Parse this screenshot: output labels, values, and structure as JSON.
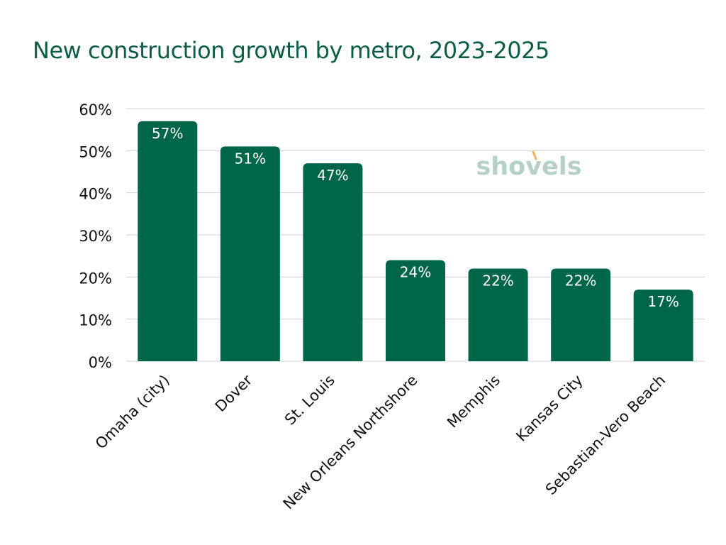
{
  "colors": {
    "bar": "#00664a",
    "title": "#0b5e45",
    "grid": "#d0d0d0",
    "text": "#111111",
    "bar_label": "#ffffff",
    "watermark_text": "#a9c9bd",
    "watermark_accent": "#f1b15a"
  },
  "watermark": {
    "text": "shovels"
  },
  "chart_data": {
    "type": "bar",
    "title": "New construction growth by metro, 2023-2025",
    "xlabel": "",
    "ylabel": "",
    "categories": [
      "Omaha (city)",
      "Dover",
      "St. Louis",
      "New Orleans Northshore",
      "Memphis",
      "Kansas City",
      "Sebastian-Vero Beach"
    ],
    "values": [
      57,
      51,
      47,
      24,
      22,
      22,
      17
    ],
    "data_labels": [
      "57%",
      "51%",
      "47%",
      "24%",
      "22%",
      "22%",
      "17%"
    ],
    "ylim": [
      0,
      60
    ],
    "yticks": [
      0,
      10,
      20,
      30,
      40,
      50,
      60
    ],
    "ytick_labels": [
      "0%",
      "10%",
      "20%",
      "30%",
      "40%",
      "50%",
      "60%"
    ],
    "grid": true,
    "legend": false
  }
}
